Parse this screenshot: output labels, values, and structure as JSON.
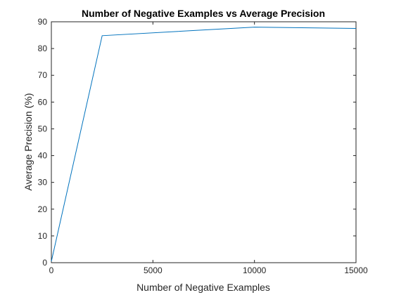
{
  "chart_data": {
    "type": "line",
    "title": "Number of Negative Examples vs Average Precision",
    "xlabel": "Number of Negative Examples",
    "ylabel": "Average Precision (%)",
    "xlim": [
      0,
      15000
    ],
    "ylim": [
      0,
      90
    ],
    "x_ticks": [
      0,
      5000,
      10000,
      15000
    ],
    "y_ticks": [
      0,
      10,
      20,
      30,
      40,
      50,
      60,
      70,
      80,
      90
    ],
    "x_tick_labels": [
      "0",
      "5000",
      "10000",
      "15000"
    ],
    "y_tick_labels": [
      "0",
      "10",
      "20",
      "30",
      "40",
      "50",
      "60",
      "70",
      "80",
      "90"
    ],
    "grid": false,
    "series": [
      {
        "x": [
          0,
          2500,
          10000,
          15000
        ],
        "y": [
          0.5,
          84.8,
          88.0,
          87.5
        ],
        "color": "#0072BD"
      }
    ]
  }
}
